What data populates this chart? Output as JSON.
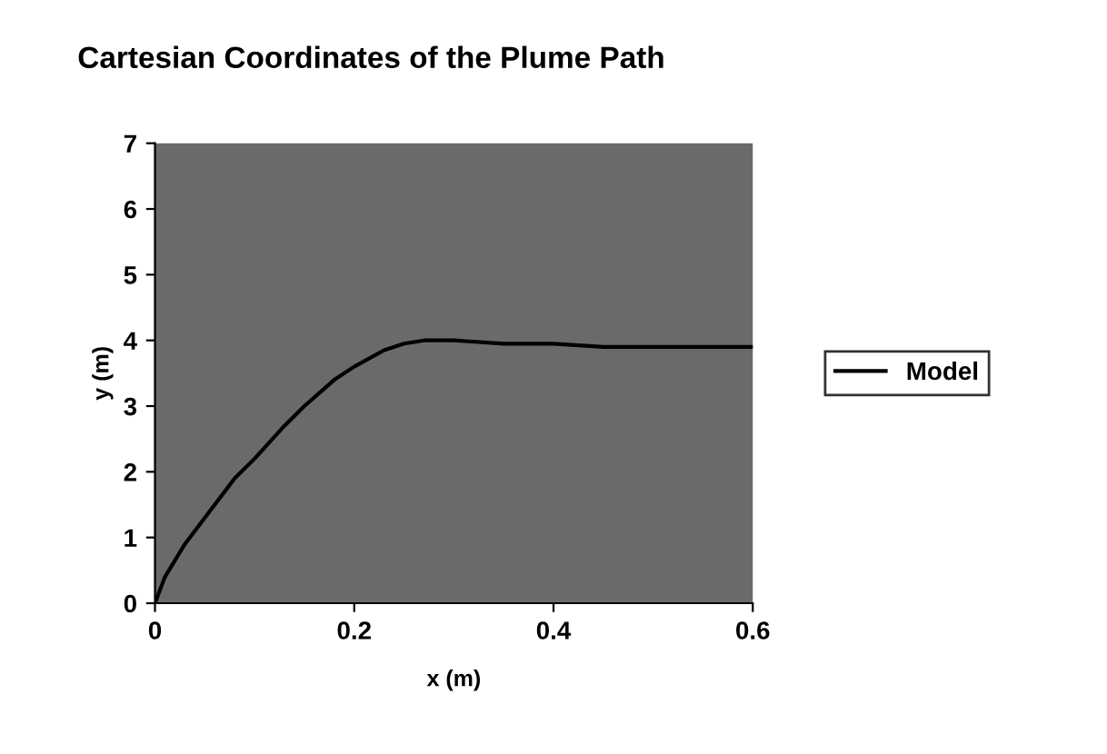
{
  "chart_data": {
    "type": "line",
    "title": "Cartesian Coordinates of the Plume Path",
    "xlabel": "x (m)",
    "ylabel": "y (m)",
    "series": [
      {
        "name": "Model",
        "color": "#000000",
        "x": [
          0,
          0.01,
          0.03,
          0.05,
          0.08,
          0.1,
          0.13,
          0.15,
          0.18,
          0.2,
          0.23,
          0.25,
          0.27,
          0.3,
          0.35,
          0.4,
          0.45,
          0.5,
          0.55,
          0.6
        ],
        "values": [
          0,
          0.4,
          0.9,
          1.3,
          1.9,
          2.2,
          2.7,
          3.0,
          3.4,
          3.6,
          3.85,
          3.95,
          4.0,
          4.0,
          3.95,
          3.95,
          3.9,
          3.9,
          3.9,
          3.9
        ]
      }
    ],
    "xlim": [
      0,
      0.6
    ],
    "xticks": [
      0,
      0.2,
      0.4,
      0.6
    ],
    "ylim": [
      0,
      7
    ],
    "yticks": [
      0,
      1,
      2,
      3,
      4,
      5,
      6,
      7
    ],
    "legend": "right",
    "grid": false,
    "line_style": "solid",
    "marker": "none"
  }
}
